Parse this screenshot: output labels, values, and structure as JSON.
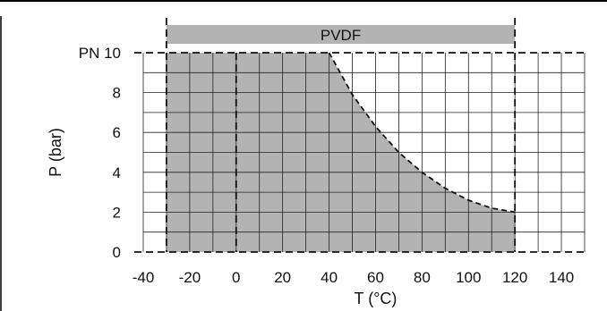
{
  "chart_data": {
    "type": "area",
    "title": "",
    "band_label": "PVDF",
    "xlabel": "T (°C)",
    "ylabel": "P (bar)",
    "xlim": [
      -40,
      150
    ],
    "ylim": [
      0,
      10
    ],
    "x_ticks": [
      "-40",
      "-20",
      "0",
      "20",
      "40",
      "60",
      "80",
      "100",
      "120",
      "140"
    ],
    "x_tick_values": [
      -40,
      -20,
      0,
      20,
      40,
      60,
      80,
      100,
      120,
      140
    ],
    "y_ticks": [
      "0",
      "2",
      "4",
      "6",
      "8",
      "PN 10"
    ],
    "y_tick_values": [
      0,
      2,
      4,
      6,
      8,
      10
    ],
    "grid": true,
    "series": [
      {
        "x": [
          -30,
          40,
          50,
          60,
          70,
          80,
          90,
          100,
          110,
          120
        ],
        "y": [
          10,
          10,
          7.9,
          6.3,
          5.0,
          4.0,
          3.2,
          2.6,
          2.2,
          2.0
        ]
      }
    ],
    "temperature_range": [
      -30,
      120
    ],
    "reference_line_x": 0,
    "colors": {
      "fill": "#b3b3b3",
      "band": "#b3b3b3",
      "grid": "#222222"
    }
  }
}
